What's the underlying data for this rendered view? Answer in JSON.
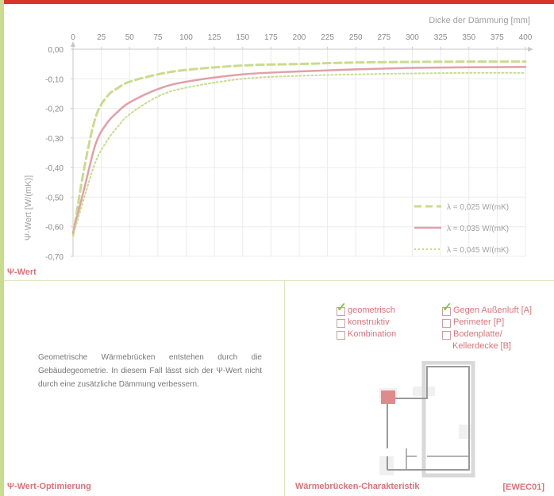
{
  "chart_data": {
    "type": "line",
    "title": "",
    "xlabel": "Dicke der Dämmung [mm]",
    "ylabel": "Ψ-Wert [W/(mK)]",
    "xlim": [
      0,
      400
    ],
    "ylim": [
      -0.7,
      0.0
    ],
    "x_ticks": [
      "0",
      "25",
      "50",
      "75",
      "100",
      "125",
      "150",
      "175",
      "200",
      "225",
      "250",
      "275",
      "300",
      "325",
      "350",
      "375",
      "400"
    ],
    "y_ticks": [
      "0,00",
      "-0,10",
      "-0,20",
      "-0,30",
      "-0,40",
      "-0,50",
      "-0,60",
      "-0,70"
    ],
    "grid": true,
    "legend_position": "bottom-right",
    "x": [
      0,
      10,
      20,
      30,
      40,
      50,
      75,
      100,
      150,
      200,
      250,
      300,
      350,
      400
    ],
    "series": [
      {
        "name": "λ = 0,025 W/(mK)",
        "color": "#c8dc8c",
        "style": "dashed",
        "values": [
          -0.63,
          -0.4,
          -0.23,
          -0.16,
          -0.13,
          -0.11,
          -0.085,
          -0.07,
          -0.055,
          -0.05,
          -0.045,
          -0.043,
          -0.042,
          -0.042
        ]
      },
      {
        "name": "λ = 0,035 W/(mK)",
        "color": "#e0a0a8",
        "style": "solid",
        "values": [
          -0.62,
          -0.47,
          -0.32,
          -0.25,
          -0.21,
          -0.18,
          -0.135,
          -0.11,
          -0.085,
          -0.075,
          -0.068,
          -0.063,
          -0.061,
          -0.06
        ]
      },
      {
        "name": "λ = 0,045 W/(mK)",
        "color": "#c8dc8c",
        "style": "dotted",
        "values": [
          -0.63,
          -0.5,
          -0.38,
          -0.31,
          -0.26,
          -0.22,
          -0.16,
          -0.13,
          -0.1,
          -0.09,
          -0.085,
          -0.082,
          -0.08,
          -0.08
        ]
      }
    ]
  },
  "sections": {
    "psi_value": "Ψ-Wert",
    "optimization": "Ψ-Wert-Optimierung",
    "characteristics": "Wärmebrücken-Charakteristik",
    "reference": "[EWEC01]"
  },
  "description": "Geometrische Wärmebrücken entstehen durch die Gebäudegeometrie. In diesem Fall lässt sich der Ψ-Wert nicht durch eine zusätzliche Dämmung verbessern.",
  "checkboxes": {
    "type": [
      {
        "label": "geometrisch",
        "checked": true
      },
      {
        "label": "konstruktiv",
        "checked": false
      },
      {
        "label": "Kombination",
        "checked": false
      }
    ],
    "location": [
      {
        "label": "Gegen Außenluft [A]",
        "checked": true
      },
      {
        "label": "Perimeter [P]",
        "checked": false
      },
      {
        "label": "Bodenplatte/",
        "checked": false
      },
      {
        "label": "Kellerdecke [B]",
        "checked": false,
        "continuation": true
      }
    ]
  },
  "colors": {
    "accent_red": "#d8342c",
    "accent_green": "#c8dc8c",
    "label_pink": "#d9737a"
  }
}
